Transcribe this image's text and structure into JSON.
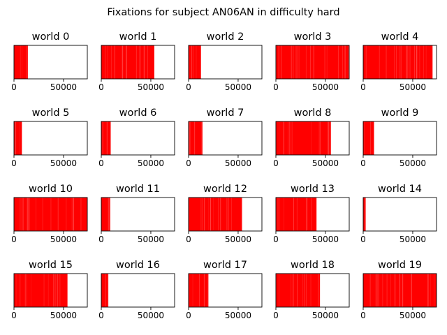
{
  "figure_title": "Fixations for subject AN06AN in difficulty hard",
  "chart_data": {
    "type": "bar",
    "title": "Fixations for subject AN06AN in difficulty hard",
    "xlim": [
      0,
      74000
    ],
    "xticks": [
      0,
      50000
    ],
    "xtick_labels": [
      "0",
      "50000"
    ],
    "y_axis_visible": false,
    "grid": false,
    "bar_color": "#ff0000",
    "panels": [
      {
        "title": "world 0",
        "fixation_extent": [
          0,
          14000
        ]
      },
      {
        "title": "world 1",
        "fixation_extent": [
          0,
          53500
        ]
      },
      {
        "title": "world 2",
        "fixation_extent": [
          0,
          12500
        ]
      },
      {
        "title": "world 3",
        "fixation_extent": [
          0,
          74000
        ]
      },
      {
        "title": "world 4",
        "fixation_extent": [
          0,
          70000
        ]
      },
      {
        "title": "world 5",
        "fixation_extent": [
          0,
          8000
        ]
      },
      {
        "title": "world 6",
        "fixation_extent": [
          0,
          9500
        ]
      },
      {
        "title": "world 7",
        "fixation_extent": [
          0,
          14000
        ]
      },
      {
        "title": "world 8",
        "fixation_extent": [
          0,
          55500
        ]
      },
      {
        "title": "world 9",
        "fixation_extent": [
          0,
          11000
        ]
      },
      {
        "title": "world 10",
        "fixation_extent": [
          0,
          74000
        ]
      },
      {
        "title": "world 11",
        "fixation_extent": [
          0,
          9000
        ]
      },
      {
        "title": "world 12",
        "fixation_extent": [
          0,
          54000
        ]
      },
      {
        "title": "world 13",
        "fixation_extent": [
          0,
          41000
        ]
      },
      {
        "title": "world 14",
        "fixation_extent": [
          0,
          2500
        ]
      },
      {
        "title": "world 15",
        "fixation_extent": [
          0,
          54000
        ]
      },
      {
        "title": "world 16",
        "fixation_extent": [
          0,
          7000
        ]
      },
      {
        "title": "world 17",
        "fixation_extent": [
          0,
          20000
        ]
      },
      {
        "title": "world 18",
        "fixation_extent": [
          0,
          44500
        ]
      },
      {
        "title": "world 19",
        "fixation_extent": [
          0,
          74000
        ]
      }
    ]
  }
}
